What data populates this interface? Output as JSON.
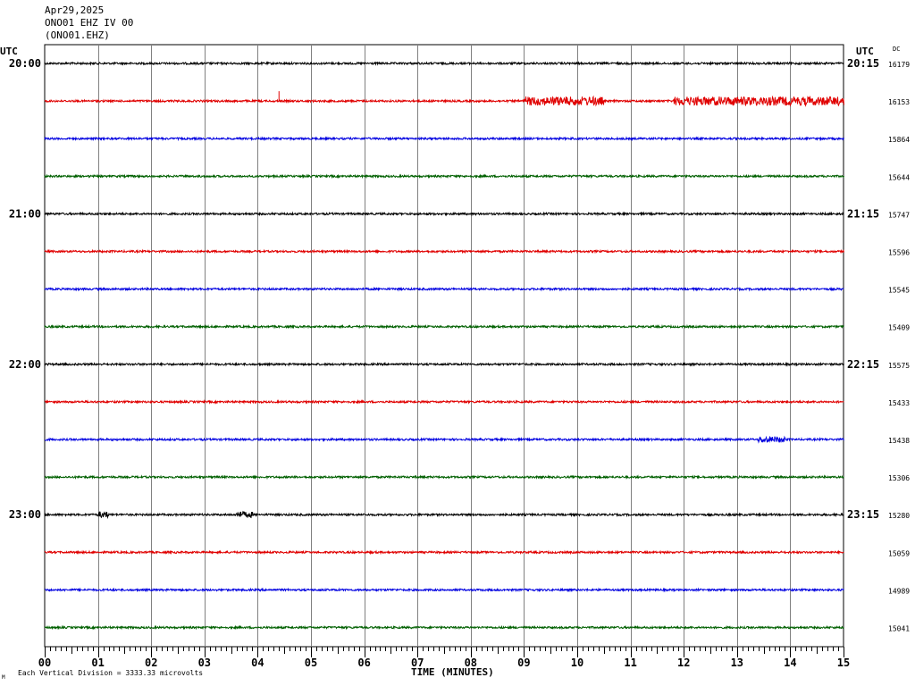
{
  "header": {
    "date": "Apr29,2025",
    "station_line": "ONO01 EHZ IV 00",
    "station_code": "(ONO01.EHZ)"
  },
  "axes": {
    "utc_left": "UTC",
    "utc_right": "UTC",
    "dc_label": "DC",
    "xlabel": "TIME (MINUTES)",
    "scale_note": "Each Vertical Division = 3333.33 microvolts",
    "corner_mark": "M"
  },
  "chart_data": {
    "type": "line",
    "xlim": [
      0,
      15
    ],
    "x_ticks": [
      "00",
      "01",
      "02",
      "03",
      "04",
      "05",
      "06",
      "07",
      "08",
      "09",
      "10",
      "11",
      "12",
      "13",
      "14",
      "15"
    ],
    "line_colors": [
      "#000000",
      "#e00000",
      "#0000e0",
      "#006000"
    ],
    "left_time_labels": [
      {
        "row": 0,
        "text": "20:00"
      },
      {
        "row": 4,
        "text": "21:00"
      },
      {
        "row": 8,
        "text": "22:00"
      },
      {
        "row": 12,
        "text": "23:00"
      }
    ],
    "right_time_labels": [
      {
        "row": 0,
        "text": "20:15"
      },
      {
        "row": 4,
        "text": "21:15"
      },
      {
        "row": 8,
        "text": "22:15"
      },
      {
        "row": 12,
        "text": "23:15"
      }
    ],
    "dc_values": [
      "16179",
      "16153",
      "15864",
      "15644",
      "15747",
      "15596",
      "15545",
      "15409",
      "15575",
      "15433",
      "15438",
      "15306",
      "15280",
      "15059",
      "14989",
      "15041"
    ],
    "trace_activity": [
      {
        "row": 1,
        "bursts": [
          {
            "from": 9.0,
            "to": 10.5,
            "level": "moderate"
          },
          {
            "from": 11.8,
            "to": 15.0,
            "level": "moderate"
          }
        ],
        "spikes": [
          4.4
        ]
      },
      {
        "row": 10,
        "bursts": [
          {
            "from": 13.4,
            "to": 13.9,
            "level": "small"
          }
        ]
      },
      {
        "row": 12,
        "bursts": [
          {
            "from": 1.0,
            "to": 1.2,
            "level": "small"
          },
          {
            "from": 3.6,
            "to": 3.9,
            "level": "small"
          }
        ]
      }
    ]
  }
}
